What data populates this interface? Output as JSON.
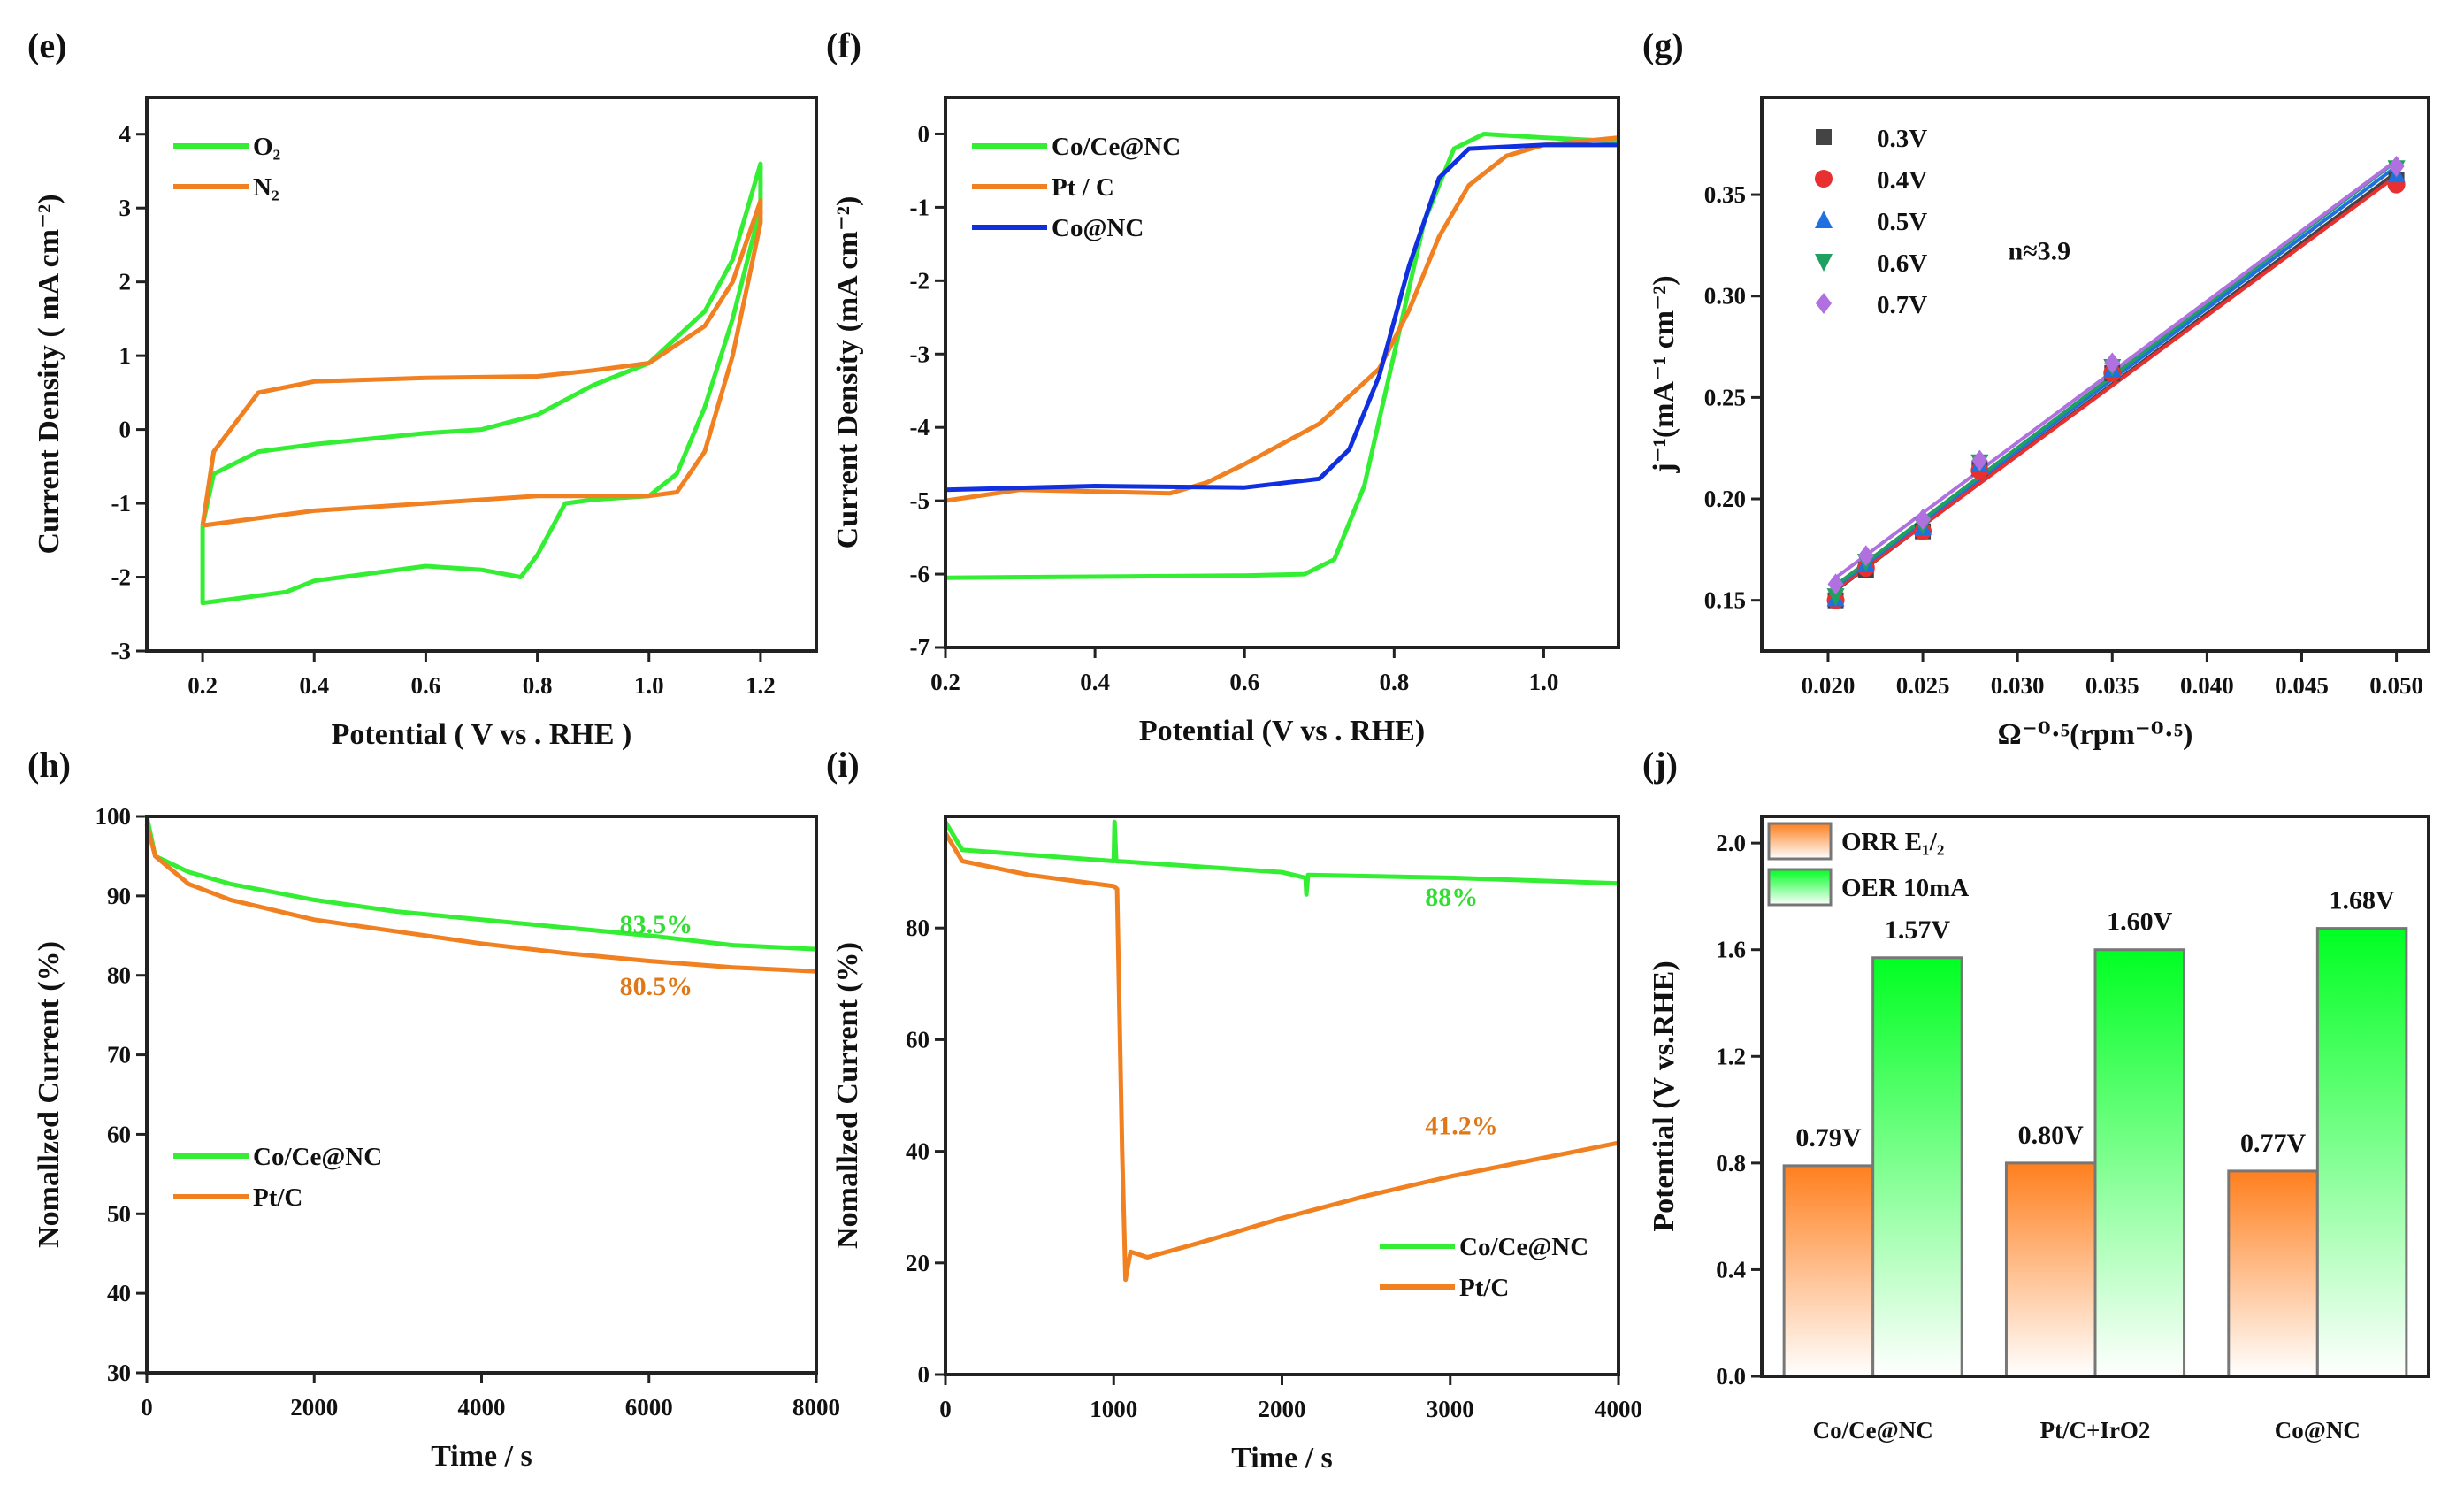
{
  "chart_data": [
    {
      "panel": "(e)",
      "type": "line",
      "xlabel": "Potential ( V vs . RHE )",
      "ylabel": "Current Density ( mA cm⁻²)",
      "xlim": [
        0.1,
        1.3
      ],
      "ylim": [
        -3,
        4.5
      ],
      "x_ticks": [
        0.2,
        0.4,
        0.6,
        0.8,
        1.0,
        1.2
      ],
      "y_ticks": [
        -3,
        -2,
        -1,
        0,
        1,
        2,
        3,
        4
      ],
      "x_tick_labels": [
        "0.2",
        "0.4",
        "0.6",
        "0.8",
        "1.0",
        "1.2"
      ],
      "y_tick_labels": [
        "-3",
        "-2",
        "-1",
        "0",
        "1",
        "2",
        "3",
        "4"
      ],
      "legend": "top-left",
      "series": [
        {
          "name": "O₂",
          "color": "#33ee33",
          "points": [
            [
              0.2,
              -1.3
            ],
            [
              0.22,
              -0.6
            ],
            [
              0.3,
              -0.3
            ],
            [
              0.4,
              -0.2
            ],
            [
              0.6,
              -0.05
            ],
            [
              0.7,
              0
            ],
            [
              0.8,
              0.2
            ],
            [
              0.9,
              0.6
            ],
            [
              1.0,
              0.9
            ],
            [
              1.1,
              1.6
            ],
            [
              1.15,
              2.3
            ],
            [
              1.2,
              3.6
            ],
            [
              1.2,
              3.0
            ],
            [
              1.15,
              1.5
            ],
            [
              1.1,
              0.3
            ],
            [
              1.05,
              -0.6
            ],
            [
              1.0,
              -0.9
            ],
            [
              0.9,
              -0.95
            ],
            [
              0.85,
              -1.0
            ],
            [
              0.8,
              -1.7
            ],
            [
              0.77,
              -2.0
            ],
            [
              0.7,
              -1.9
            ],
            [
              0.6,
              -1.85
            ],
            [
              0.4,
              -2.05
            ],
            [
              0.35,
              -2.2
            ],
            [
              0.25,
              -2.3
            ],
            [
              0.2,
              -2.35
            ],
            [
              0.2,
              -1.3
            ]
          ]
        },
        {
          "name": "N₂",
          "color": "#f08020",
          "points": [
            [
              0.2,
              -1.3
            ],
            [
              0.22,
              -0.3
            ],
            [
              0.3,
              0.5
            ],
            [
              0.4,
              0.65
            ],
            [
              0.6,
              0.7
            ],
            [
              0.8,
              0.72
            ],
            [
              0.9,
              0.8
            ],
            [
              1.0,
              0.9
            ],
            [
              1.1,
              1.4
            ],
            [
              1.15,
              2.0
            ],
            [
              1.2,
              3.1
            ],
            [
              1.2,
              2.8
            ],
            [
              1.15,
              1.0
            ],
            [
              1.1,
              -0.3
            ],
            [
              1.05,
              -0.85
            ],
            [
              1.0,
              -0.9
            ],
            [
              0.8,
              -0.9
            ],
            [
              0.6,
              -1.0
            ],
            [
              0.4,
              -1.1
            ],
            [
              0.2,
              -1.3
            ]
          ]
        }
      ]
    },
    {
      "panel": "(f)",
      "type": "line",
      "xlabel": "Potential (V vs . RHE)",
      "ylabel": "Current Density (mA cm⁻²)",
      "xlim": [
        0.2,
        1.1
      ],
      "ylim": [
        -7,
        0.5
      ],
      "x_ticks": [
        0.2,
        0.4,
        0.6,
        0.8,
        1.0
      ],
      "y_ticks": [
        -7,
        -6,
        -5,
        -4,
        -3,
        -2,
        -1,
        0
      ],
      "x_tick_labels": [
        "0.2",
        "0.4",
        "0.6",
        "0.8",
        "1.0"
      ],
      "y_tick_labels": [
        "-7",
        "-6",
        "-5",
        "-4",
        "-3",
        "-2",
        "-1",
        "0"
      ],
      "legend": "top-left",
      "series": [
        {
          "name": "Co/Ce@NC",
          "color": "#33ee33",
          "points": [
            [
              0.2,
              -6.05
            ],
            [
              0.6,
              -6.02
            ],
            [
              0.68,
              -6.0
            ],
            [
              0.72,
              -5.8
            ],
            [
              0.76,
              -4.8
            ],
            [
              0.8,
              -3.0
            ],
            [
              0.84,
              -1.2
            ],
            [
              0.88,
              -0.2
            ],
            [
              0.92,
              0
            ],
            [
              1.0,
              -0.05
            ],
            [
              1.1,
              -0.1
            ]
          ]
        },
        {
          "name": "Pt / C",
          "color": "#f08020",
          "points": [
            [
              0.2,
              -5.0
            ],
            [
              0.3,
              -4.85
            ],
            [
              0.5,
              -4.9
            ],
            [
              0.55,
              -4.75
            ],
            [
              0.6,
              -4.5
            ],
            [
              0.7,
              -3.95
            ],
            [
              0.78,
              -3.2
            ],
            [
              0.82,
              -2.4
            ],
            [
              0.86,
              -1.4
            ],
            [
              0.9,
              -0.7
            ],
            [
              0.95,
              -0.3
            ],
            [
              1.0,
              -0.15
            ],
            [
              1.1,
              -0.05
            ]
          ]
        },
        {
          "name": "Co@NC",
          "color": "#1030e0",
          "points": [
            [
              0.2,
              -4.85
            ],
            [
              0.4,
              -4.8
            ],
            [
              0.6,
              -4.82
            ],
            [
              0.7,
              -4.7
            ],
            [
              0.74,
              -4.3
            ],
            [
              0.78,
              -3.3
            ],
            [
              0.82,
              -1.8
            ],
            [
              0.86,
              -0.6
            ],
            [
              0.9,
              -0.2
            ],
            [
              1.0,
              -0.15
            ],
            [
              1.1,
              -0.15
            ]
          ]
        }
      ]
    },
    {
      "panel": "(g)",
      "type": "scatter",
      "xlabel": "Ω⁻⁰·⁵(rpm⁻⁰·⁵)",
      "ylabel": "j⁻¹(mA⁻¹ cm⁻²)",
      "xlim": [
        0.0165,
        0.0517
      ],
      "ylim": [
        0.125,
        0.398
      ],
      "x_ticks": [
        0.02,
        0.025,
        0.03,
        0.035,
        0.04,
        0.045,
        0.05
      ],
      "y_ticks": [
        0.15,
        0.2,
        0.25,
        0.3,
        0.35
      ],
      "x_tick_labels": [
        "0.020",
        "0.025",
        "0.030",
        "0.035",
        "0.040",
        "0.045",
        "0.050"
      ],
      "y_tick_labels": [
        "0.15",
        "0.20",
        "0.25",
        "0.30",
        "0.35"
      ],
      "legend": "top-left",
      "linear_fit": true,
      "x": [
        0.0204,
        0.022,
        0.025,
        0.028,
        0.035,
        0.05
      ],
      "annotations": [
        {
          "text": "n≈3.9",
          "x": 0.0295,
          "y": 0.318
        }
      ],
      "series": [
        {
          "name": "0.3V",
          "color": "#444444",
          "marker": "square",
          "values": [
            0.15,
            0.165,
            0.184,
            0.215,
            0.262,
            0.357
          ]
        },
        {
          "name": "0.4V",
          "color": "#e83030",
          "marker": "circle",
          "values": [
            0.15,
            0.166,
            0.184,
            0.214,
            0.262,
            0.355
          ]
        },
        {
          "name": "0.5V",
          "color": "#2070e0",
          "marker": "triangle-up",
          "values": [
            0.151,
            0.168,
            0.186,
            0.217,
            0.264,
            0.36
          ]
        },
        {
          "name": "0.6V",
          "color": "#20a060",
          "marker": "triangle-down",
          "values": [
            0.152,
            0.169,
            0.187,
            0.218,
            0.265,
            0.363
          ]
        },
        {
          "name": "0.7V",
          "color": "#b070e0",
          "marker": "diamond",
          "values": [
            0.158,
            0.172,
            0.19,
            0.219,
            0.267,
            0.364
          ]
        }
      ]
    },
    {
      "panel": "(h)",
      "type": "line",
      "xlabel": "Time / s",
      "ylabel": "Nomallzed Current (%)",
      "xlim": [
        0,
        8000
      ],
      "ylim": [
        30,
        100
      ],
      "x_ticks": [
        0,
        2000,
        4000,
        6000,
        8000
      ],
      "y_ticks": [
        30,
        40,
        50,
        60,
        70,
        80,
        90,
        100
      ],
      "x_tick_labels": [
        "0",
        "2000",
        "4000",
        "6000",
        "8000"
      ],
      "y_tick_labels": [
        "30",
        "40",
        "50",
        "60",
        "70",
        "80",
        "90",
        "100"
      ],
      "legend": "bottom-left",
      "annotations": [
        {
          "text": "83.5%",
          "x": 5650,
          "y": 85.3,
          "color": "#33dd33"
        },
        {
          "text": "80.5%",
          "x": 5650,
          "y": 77.5,
          "color": "#e07818"
        }
      ],
      "series": [
        {
          "name": "Co/Ce@NC",
          "color": "#33ee33",
          "points": [
            [
              0,
              100
            ],
            [
              100,
              95
            ],
            [
              500,
              93
            ],
            [
              1000,
              91.5
            ],
            [
              2000,
              89.5
            ],
            [
              3000,
              88
            ],
            [
              4000,
              87
            ],
            [
              5000,
              86
            ],
            [
              6000,
              85
            ],
            [
              7000,
              83.8
            ],
            [
              8000,
              83.3
            ]
          ]
        },
        {
          "name": "Pt/C",
          "color": "#f08020",
          "points": [
            [
              0,
              99
            ],
            [
              100,
              95
            ],
            [
              500,
              91.5
            ],
            [
              1000,
              89.5
            ],
            [
              2000,
              87
            ],
            [
              3000,
              85.5
            ],
            [
              4000,
              84
            ],
            [
              5000,
              82.8
            ],
            [
              6000,
              81.8
            ],
            [
              7000,
              81
            ],
            [
              8000,
              80.5
            ]
          ]
        }
      ]
    },
    {
      "panel": "(i)",
      "type": "line",
      "xlabel": "Time / s",
      "ylabel": "Nomallzed Current (%)",
      "xlim": [
        0,
        4000
      ],
      "ylim": [
        0,
        100
      ],
      "x_ticks": [
        0,
        1000,
        2000,
        3000,
        4000
      ],
      "y_ticks": [
        0,
        20,
        40,
        60,
        80
      ],
      "x_tick_labels": [
        "0",
        "1000",
        "2000",
        "3000",
        "4000"
      ],
      "y_tick_labels": [
        "0",
        "20",
        "40",
        "60",
        "80"
      ],
      "legend": "bottom-right",
      "annotations": [
        {
          "text": "88%",
          "x": 2850,
          "y": 84,
          "color": "#33dd33"
        },
        {
          "text": "41.2%",
          "x": 2850,
          "y": 43,
          "color": "#e07818"
        }
      ],
      "series": [
        {
          "name": "Co/Ce@NC",
          "color": "#33ee33",
          "points": [
            [
              0,
              99
            ],
            [
              100,
              94
            ],
            [
              1000,
              92
            ],
            [
              1005,
              99
            ],
            [
              1015,
              92
            ],
            [
              2000,
              90
            ],
            [
              2140,
              89
            ],
            [
              2145,
              86
            ],
            [
              2155,
              89.5
            ],
            [
              3000,
              89
            ],
            [
              4000,
              88
            ]
          ]
        },
        {
          "name": "Pt/C",
          "color": "#f08020",
          "points": [
            [
              0,
              97
            ],
            [
              100,
              92
            ],
            [
              500,
              89.5
            ],
            [
              1000,
              87.5
            ],
            [
              1020,
              87
            ],
            [
              1050,
              40
            ],
            [
              1070,
              17
            ],
            [
              1100,
              22
            ],
            [
              1200,
              21
            ],
            [
              1500,
              23.5
            ],
            [
              2000,
              28
            ],
            [
              2500,
              32
            ],
            [
              3000,
              35.5
            ],
            [
              3500,
              38.5
            ],
            [
              4000,
              41.5
            ]
          ]
        }
      ]
    },
    {
      "panel": "(j)",
      "type": "bar",
      "xlabel": "",
      "ylabel": "Potential (V vs.RHE)",
      "ylim": [
        0,
        2.1
      ],
      "y_ticks": [
        0,
        0.4,
        0.8,
        1.2,
        1.6,
        2.0
      ],
      "y_tick_labels": [
        "0.0",
        "0.4",
        "0.8",
        "1.2",
        "1.6",
        "2.0"
      ],
      "legend": "top-left",
      "categories": [
        "Co/Ce@NC",
        "Pt/C+IrO2",
        "Co@NC"
      ],
      "series": [
        {
          "name": "ORR E₁/₂",
          "color": "#ff7f1e",
          "values": [
            0.79,
            0.8,
            0.77
          ],
          "labels": [
            "0.79V",
            "0.80V",
            "0.77V"
          ]
        },
        {
          "name": "OER 10mA",
          "color": "#00ff22",
          "values": [
            1.57,
            1.6,
            1.68
          ],
          "labels": [
            "1.57V",
            "1.60V",
            "1.68V"
          ]
        }
      ]
    }
  ]
}
